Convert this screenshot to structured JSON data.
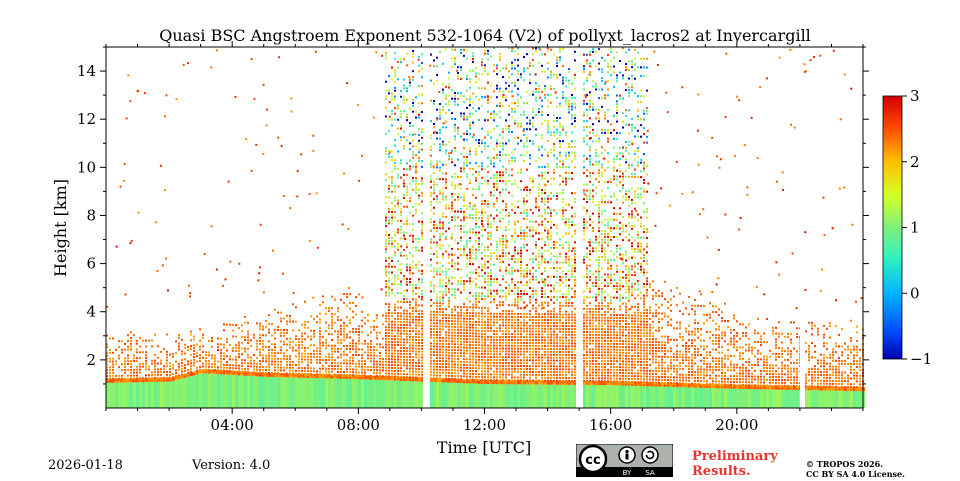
{
  "chart_data": {
    "type": "heatmap",
    "title": "Quasi BSC Angstroem Exponent 532-1064 (V2) of pollyxt_lacros2 at Invercargill",
    "xlabel": "Time [UTC]",
    "ylabel": "Height [km]",
    "xlim_hours": [
      0,
      24
    ],
    "ylim_km": [
      0,
      15
    ],
    "x_ticks": [
      {
        "hour": 4,
        "label": "04:00"
      },
      {
        "hour": 8,
        "label": "08:00"
      },
      {
        "hour": 12,
        "label": "12:00"
      },
      {
        "hour": 16,
        "label": "16:00"
      },
      {
        "hour": 20,
        "label": "20:00"
      }
    ],
    "y_ticks": [
      {
        "value": 2,
        "label": "2"
      },
      {
        "value": 4,
        "label": "4"
      },
      {
        "value": 6,
        "label": "6"
      },
      {
        "value": 8,
        "label": "8"
      },
      {
        "value": 10,
        "label": "10"
      },
      {
        "value": 12,
        "label": "12"
      },
      {
        "value": 14,
        "label": "14"
      }
    ],
    "colorbar": {
      "range": [
        -1,
        3
      ],
      "ticks": [
        {
          "value": 3,
          "label": "3"
        },
        {
          "value": 2,
          "label": "2"
        },
        {
          "value": 1,
          "label": "1"
        },
        {
          "value": 0,
          "label": "0"
        },
        {
          "value": -1,
          "label": "−1"
        }
      ],
      "colormap": "jet"
    },
    "data_gaps_hours": [
      [
        10.05,
        10.2
      ],
      [
        14.9,
        15.05
      ],
      [
        22.0,
        22.1
      ]
    ],
    "low_layer": {
      "top_km_by_hour": [
        [
          0,
          1.05
        ],
        [
          2,
          1.1
        ],
        [
          3,
          1.45
        ],
        [
          5,
          1.3
        ],
        [
          8,
          1.2
        ],
        [
          10,
          1.1
        ],
        [
          12,
          1.0
        ],
        [
          16,
          0.95
        ],
        [
          20,
          0.8
        ],
        [
          24,
          0.7
        ]
      ],
      "value": 1.0
    },
    "cloud_region": {
      "start_hour": 8.8,
      "end_hour": 17.2,
      "top_km": 15,
      "typical_values": [
        1.5,
        3
      ]
    },
    "background_typical_value": 2.6
  },
  "footer": {
    "date": "2026-01-18",
    "version": "Version: 4.0",
    "preliminary": "Preliminary Results.",
    "copyright_line1": "© TROPOS 2026.",
    "copyright_line2": "CC BY SA 4.0 License.",
    "license_badge": {
      "logo": "cc",
      "by": "BY",
      "sa": "SA"
    }
  }
}
